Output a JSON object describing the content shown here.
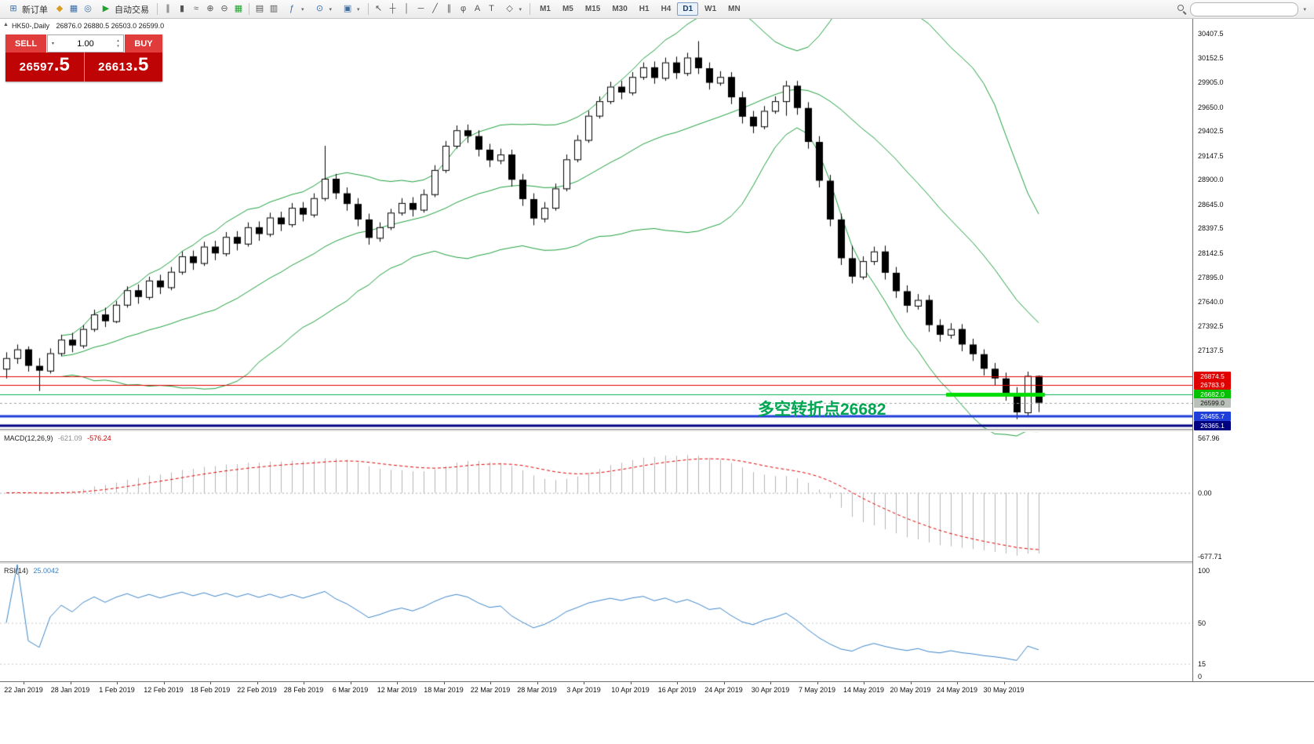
{
  "icons": {
    "collapse": "▲",
    "new_order": "⊞",
    "mql": "◆",
    "charts": "▦",
    "profile": "◎",
    "play": "▶",
    "bars": "∥",
    "candles": "▮",
    "line": "≈",
    "zoom_in": "⊕",
    "zoom_out": "⊖",
    "grid": "▦",
    "tile1": "▤",
    "tile2": "▥",
    "indicators": "ƒ",
    "clock": "⊙",
    "templates": "▣",
    "cursor": "↖",
    "crosshair": "┼",
    "vline": "│",
    "hline": "─",
    "trendline": "╱",
    "channel": "∥",
    "fibonacci": "φ",
    "text_tool": "A",
    "label_tool": "T",
    "shapes": "◇",
    "caret": "▾",
    "up": "▴",
    "down": "▾"
  },
  "toolbar": {
    "new_order_label": "新订单",
    "autotrade_label": "自动交易",
    "timeframes": [
      "M1",
      "M5",
      "M15",
      "M30",
      "H1",
      "H4",
      "D1",
      "W1",
      "MN"
    ],
    "active_timeframe": "D1"
  },
  "chart_header": {
    "symbol_period": "HK50-,Daily",
    "ohlc": "26876.0 26880.5 26503.0 26599.0"
  },
  "trade_panel": {
    "sell_label": "SELL",
    "buy_label": "BUY",
    "volume": "1.00",
    "sell_price_base": "26597",
    "sell_price_frac": ".5",
    "buy_price_base": "26613",
    "buy_price_frac": ".5"
  },
  "price_scale": {
    "ticks": [
      "30407.5",
      "30152.5",
      "29905.0",
      "29650.0",
      "29402.5",
      "29147.5",
      "28900.0",
      "28645.0",
      "28397.5",
      "28142.5",
      "27895.0",
      "27640.0",
      "27392.5",
      "27137.5"
    ]
  },
  "hlines": [
    {
      "label": "26874.5",
      "price": 26874.5,
      "color": "#e00000",
      "tag_bg": "#e00000",
      "tag_fg": "#ffffff",
      "width": 1,
      "dash": null
    },
    {
      "label": "26783.9",
      "price": 26783.9,
      "color": "#e00000",
      "tag_bg": "#e00000",
      "tag_fg": "#ffffff",
      "width": 1,
      "dash": null
    },
    {
      "label": "26682.0",
      "price": 26682.0,
      "color": "#00b050",
      "tag_bg": "#00c000",
      "tag_fg": "#ffffff",
      "width": 1,
      "dash": null
    },
    {
      "label": "26599.0",
      "price": 26599.0,
      "color": "#9aa49a",
      "tag_bg": "#b9bfb9",
      "tag_fg": "#111111",
      "width": 1,
      "dash": [
        3,
        3
      ]
    },
    {
      "label": "26455.7",
      "price": 26455.7,
      "color": "#1f3fd8",
      "tag_bg": "#1f3fd8",
      "tag_fg": "#ffffff",
      "width": 3,
      "dash": null
    },
    {
      "label": "26365.1",
      "price": 26365.1,
      "color": "#000080",
      "tag_bg": "#000080",
      "tag_fg": "#ffffff",
      "width": 3,
      "dash": null
    }
  ],
  "panes": {
    "macd_label": "MACD(12,26,9)",
    "macd_value1": "-621.09",
    "macd_value2": "-576.24",
    "macd_scale": [
      "567.96",
      "0.00",
      "-677.71"
    ],
    "rsi_label": "RSI(14)",
    "rsi_value": "25.0042",
    "rsi_scale": [
      "100",
      "50",
      "15",
      "0"
    ]
  },
  "time_axis": {
    "labels": [
      "22 Jan 2019",
      "28 Jan 2019",
      "1 Feb 2019",
      "12 Feb 2019",
      "18 Feb 2019",
      "22 Feb 2019",
      "28 Feb 2019",
      "6 Mar 2019",
      "12 Mar 2019",
      "18 Mar 2019",
      "22 Mar 2019",
      "28 Mar 2019",
      "3 Apr 2019",
      "10 Apr 2019",
      "16 Apr 2019",
      "24 Apr 2019",
      "30 Apr 2019",
      "7 May 2019",
      "14 May 2019",
      "20 May 2019",
      "24 May 2019",
      "30 May 2019"
    ]
  },
  "chart_data": {
    "type": "candlestick",
    "symbol": "HK50",
    "period": "Daily",
    "last_ohlc": {
      "open": 26876.0,
      "high": 26880.5,
      "low": 26503.0,
      "close": 26599.0
    },
    "y_ticks": [
      30407.5,
      30152.5,
      29905.0,
      29650.0,
      29402.5,
      29147.5,
      28900.0,
      28645.0,
      28397.5,
      28142.5,
      27895.0,
      27640.0,
      27392.5,
      27137.5
    ],
    "overlays": [
      {
        "name": "bollinger-bands",
        "color": "#1d9e3c"
      }
    ],
    "sub_indicators": [
      {
        "name": "MACD",
        "params": "12,26,9",
        "values": [
          -621.09,
          -576.24
        ],
        "scale": [
          567.96,
          0.0,
          -677.71
        ],
        "histogram_color": "#b4b4b4",
        "signal_color": "#e00000"
      },
      {
        "name": "RSI",
        "params": "14",
        "value": 25.0042,
        "scale": [
          100,
          50,
          15,
          0
        ],
        "line_color": "#3d85c8"
      }
    ],
    "annotation": {
      "text": "多空转折点26682",
      "color": "#00a651",
      "highlight_price": 26682.0,
      "highlight_color": "#00dd00"
    },
    "candles": [
      [
        26950,
        27120,
        26850,
        27060
      ],
      [
        27060,
        27200,
        27000,
        27150
      ],
      [
        27150,
        27180,
        26920,
        26980
      ],
      [
        26980,
        27060,
        26720,
        26930
      ],
      [
        26930,
        27160,
        26900,
        27110
      ],
      [
        27110,
        27300,
        27080,
        27250
      ],
      [
        27250,
        27320,
        27120,
        27190
      ],
      [
        27190,
        27400,
        27160,
        27360
      ],
      [
        27360,
        27560,
        27330,
        27510
      ],
      [
        27510,
        27580,
        27380,
        27440
      ],
      [
        27440,
        27650,
        27420,
        27610
      ],
      [
        27610,
        27800,
        27580,
        27760
      ],
      [
        27760,
        27820,
        27620,
        27690
      ],
      [
        27690,
        27900,
        27660,
        27860
      ],
      [
        27860,
        27920,
        27720,
        27790
      ],
      [
        27790,
        28000,
        27760,
        27950
      ],
      [
        27950,
        28160,
        27920,
        28110
      ],
      [
        28110,
        28170,
        27970,
        28040
      ],
      [
        28040,
        28260,
        28010,
        28210
      ],
      [
        28210,
        28270,
        28070,
        28140
      ],
      [
        28140,
        28360,
        28110,
        28310
      ],
      [
        28310,
        28370,
        28170,
        28240
      ],
      [
        28240,
        28460,
        28210,
        28410
      ],
      [
        28410,
        28470,
        28270,
        28340
      ],
      [
        28340,
        28560,
        28310,
        28510
      ],
      [
        28510,
        28570,
        28370,
        28440
      ],
      [
        28440,
        28660,
        28410,
        28610
      ],
      [
        28610,
        28670,
        28470,
        28540
      ],
      [
        28540,
        28760,
        28510,
        28710
      ],
      [
        28710,
        29250,
        28680,
        28910
      ],
      [
        28910,
        28960,
        28700,
        28760
      ],
      [
        28760,
        28820,
        28580,
        28650
      ],
      [
        28650,
        28710,
        28420,
        28490
      ],
      [
        28490,
        28550,
        28230,
        28300
      ],
      [
        28300,
        28460,
        28260,
        28410
      ],
      [
        28410,
        28600,
        28380,
        28560
      ],
      [
        28560,
        28710,
        28530,
        28660
      ],
      [
        28660,
        28720,
        28520,
        28590
      ],
      [
        28590,
        28800,
        28560,
        28750
      ],
      [
        28750,
        29050,
        28720,
        29000
      ],
      [
        29000,
        29300,
        28970,
        29250
      ],
      [
        29250,
        29460,
        29220,
        29410
      ],
      [
        29410,
        29470,
        29280,
        29350
      ],
      [
        29350,
        29410,
        29140,
        29210
      ],
      [
        29210,
        29270,
        29030,
        29100
      ],
      [
        29100,
        29220,
        29060,
        29160
      ],
      [
        29160,
        29210,
        28830,
        28900
      ],
      [
        28900,
        28960,
        28630,
        28700
      ],
      [
        28700,
        28760,
        28430,
        28500
      ],
      [
        28500,
        28670,
        28460,
        28610
      ],
      [
        28610,
        28860,
        28580,
        28810
      ],
      [
        28810,
        29160,
        28780,
        29110
      ],
      [
        29110,
        29360,
        29080,
        29310
      ],
      [
        29310,
        29610,
        29280,
        29560
      ],
      [
        29560,
        29760,
        29530,
        29710
      ],
      [
        29710,
        29910,
        29680,
        29860
      ],
      [
        29860,
        29920,
        29730,
        29800
      ],
      [
        29800,
        30010,
        29770,
        29960
      ],
      [
        29960,
        30110,
        29930,
        30060
      ],
      [
        30060,
        30120,
        29890,
        29950
      ],
      [
        29950,
        30160,
        29920,
        30110
      ],
      [
        30110,
        30170,
        29940,
        30000
      ],
      [
        30000,
        30210,
        29970,
        30160
      ],
      [
        30160,
        30330,
        29990,
        30050
      ],
      [
        30050,
        30110,
        29830,
        29900
      ],
      [
        29900,
        30020,
        29870,
        29960
      ],
      [
        29960,
        30010,
        29680,
        29750
      ],
      [
        29750,
        29810,
        29480,
        29550
      ],
      [
        29550,
        29610,
        29380,
        29450
      ],
      [
        29450,
        29660,
        29420,
        29610
      ],
      [
        29610,
        29760,
        29580,
        29710
      ],
      [
        29710,
        29920,
        29560,
        29870
      ],
      [
        29870,
        29920,
        29570,
        29640
      ],
      [
        29640,
        29700,
        29220,
        29290
      ],
      [
        29290,
        29350,
        28820,
        28890
      ],
      [
        28890,
        28950,
        28420,
        28490
      ],
      [
        28490,
        28550,
        28020,
        28090
      ],
      [
        28090,
        28220,
        27830,
        27900
      ],
      [
        27900,
        28110,
        27870,
        28060
      ],
      [
        28060,
        28210,
        28020,
        28160
      ],
      [
        28160,
        28220,
        27870,
        27940
      ],
      [
        27940,
        28000,
        27680,
        27750
      ],
      [
        27750,
        27810,
        27530,
        27600
      ],
      [
        27600,
        27720,
        27560,
        27660
      ],
      [
        27660,
        27710,
        27330,
        27400
      ],
      [
        27400,
        27460,
        27230,
        27300
      ],
      [
        27300,
        27420,
        27260,
        27360
      ],
      [
        27360,
        27410,
        27130,
        27200
      ],
      [
        27200,
        27260,
        27030,
        27100
      ],
      [
        27100,
        27150,
        26880,
        26950
      ],
      [
        26950,
        27010,
        26780,
        26850
      ],
      [
        26850,
        26910,
        26620,
        26700
      ],
      [
        26700,
        26760,
        26430,
        26500
      ],
      [
        26500,
        26920,
        26460,
        26876
      ],
      [
        26876,
        26880.5,
        26503,
        26599
      ]
    ]
  }
}
